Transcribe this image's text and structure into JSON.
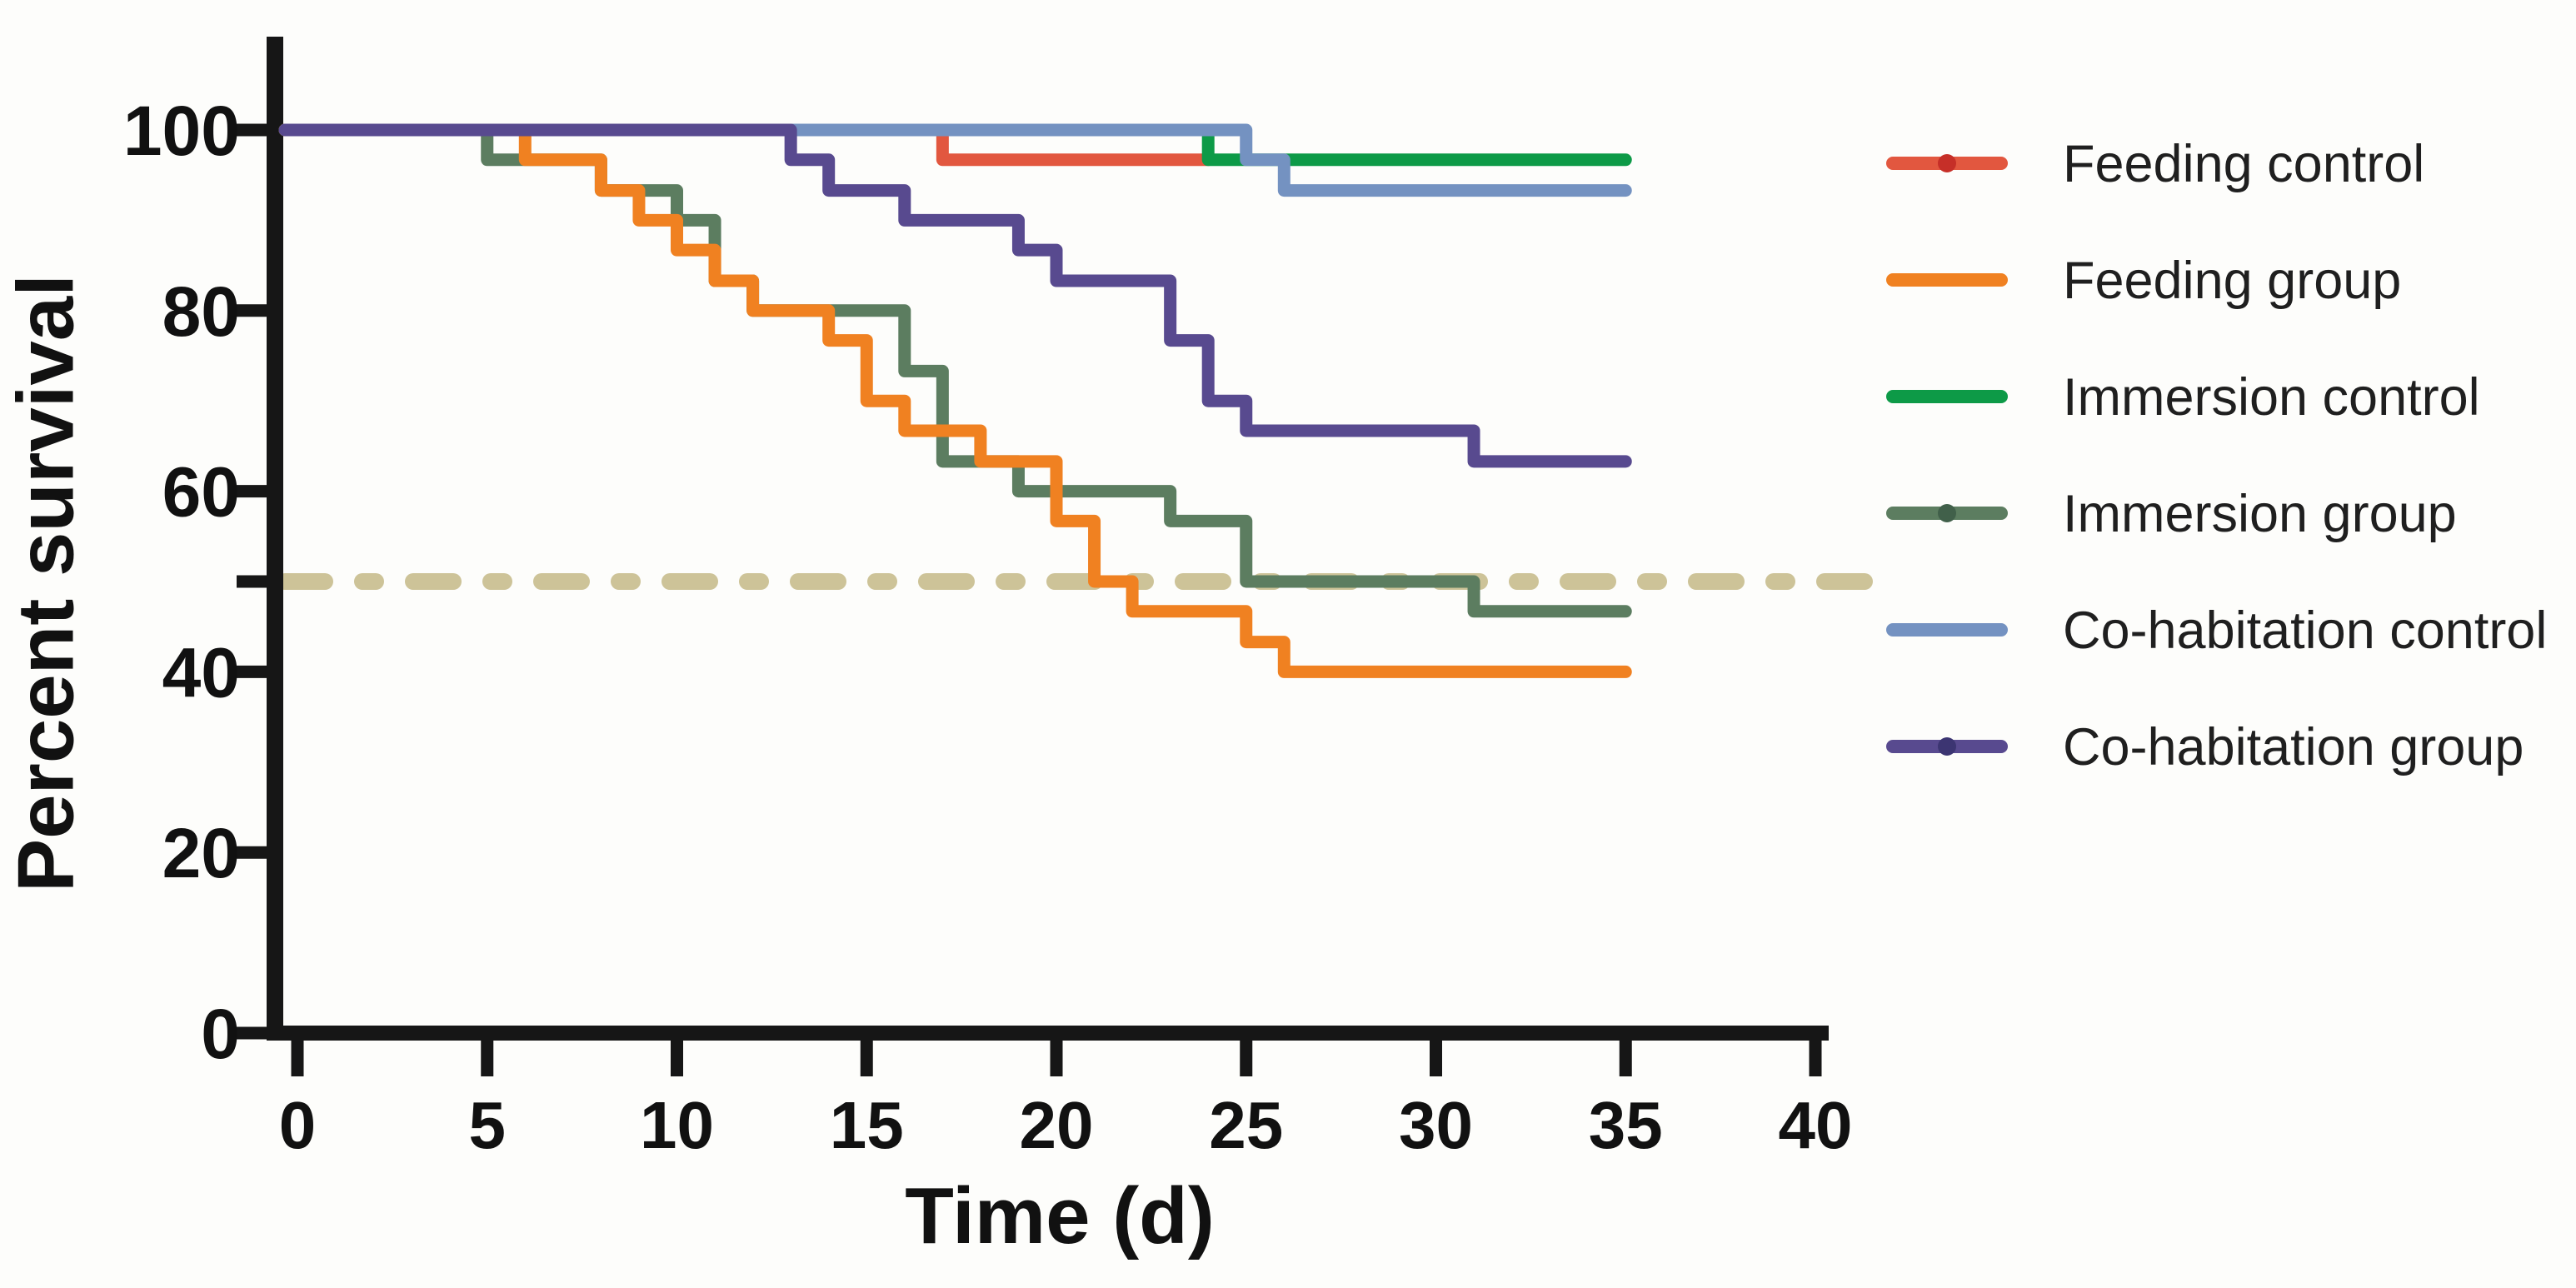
{
  "figure": {
    "background": "#fdfdfb",
    "axis_color": "#161616",
    "text_color": "#111111"
  },
  "chart_data": {
    "type": "line",
    "subtype": "kaplan-meier-step-survival",
    "title": "",
    "xlabel": "Time (d)",
    "ylabel": "Percent survival",
    "xlim": [
      0,
      40
    ],
    "ylim": [
      0,
      110
    ],
    "grid": false,
    "legend_position": "right",
    "x_ticks": [
      {
        "v": 0,
        "label": "0"
      },
      {
        "v": 5,
        "label": "5"
      },
      {
        "v": 10,
        "label": "10"
      },
      {
        "v": 15,
        "label": "15"
      },
      {
        "v": 20,
        "label": "20"
      },
      {
        "v": 25,
        "label": "25"
      },
      {
        "v": 30,
        "label": "30"
      },
      {
        "v": 35,
        "label": "35"
      },
      {
        "v": 40,
        "label": "40"
      }
    ],
    "y_ticks": [
      {
        "v": 0,
        "label": "0"
      },
      {
        "v": 20,
        "label": "20"
      },
      {
        "v": 40,
        "label": "40"
      },
      {
        "v": 50,
        "label": null
      },
      {
        "v": 60,
        "label": "60"
      },
      {
        "v": 80,
        "label": "80"
      },
      {
        "v": 100,
        "label": "100"
      }
    ],
    "reference_line": {
      "y": 50,
      "style": "dash-dot",
      "color": "#cdc398"
    },
    "series": [
      {
        "name": "Feeding control",
        "color": "#e2573f",
        "legend_dot": true,
        "dot_color": "#c62f28",
        "points": [
          [
            0,
            100
          ],
          [
            17,
            96.7
          ],
          [
            24,
            96.7
          ]
        ]
      },
      {
        "name": "Feeding group",
        "color": "#f08121",
        "legend_dot": false,
        "dot_color": null,
        "points": [
          [
            0,
            100
          ],
          [
            6,
            96.7
          ],
          [
            8,
            93.3
          ],
          [
            9,
            90
          ],
          [
            10,
            86.7
          ],
          [
            11,
            83.3
          ],
          [
            12,
            80
          ],
          [
            14,
            76.7
          ],
          [
            15,
            70
          ],
          [
            16,
            66.7
          ],
          [
            18,
            63.3
          ],
          [
            20,
            56.7
          ],
          [
            21,
            50
          ],
          [
            22,
            46.7
          ],
          [
            25,
            43.3
          ],
          [
            26,
            40
          ],
          [
            35,
            40
          ]
        ]
      },
      {
        "name": "Immersion control",
        "color": "#0d9a47",
        "legend_dot": false,
        "dot_color": null,
        "points": [
          [
            0,
            100
          ],
          [
            24,
            96.7
          ],
          [
            35,
            96.7
          ]
        ]
      },
      {
        "name": "Immersion group",
        "color": "#5c7d60",
        "legend_dot": true,
        "dot_color": "#41604a",
        "points": [
          [
            0,
            100
          ],
          [
            5,
            96.7
          ],
          [
            8,
            93.3
          ],
          [
            10,
            90
          ],
          [
            11,
            83.3
          ],
          [
            12,
            80
          ],
          [
            16,
            73.3
          ],
          [
            17,
            63.3
          ],
          [
            19,
            60
          ],
          [
            23,
            56.7
          ],
          [
            25,
            50
          ],
          [
            31,
            46.7
          ],
          [
            35,
            46.7
          ]
        ]
      },
      {
        "name": "Co-habitation control",
        "color": "#7492c1",
        "legend_dot": false,
        "dot_color": null,
        "points": [
          [
            0,
            100
          ],
          [
            25,
            96.7
          ],
          [
            26,
            93.3
          ],
          [
            35,
            93.3
          ]
        ]
      },
      {
        "name": "Co-habitation group",
        "color": "#584a8f",
        "legend_dot": true,
        "dot_color": "#3c3572",
        "points": [
          [
            0,
            100
          ],
          [
            13,
            96.7
          ],
          [
            14,
            93.3
          ],
          [
            16,
            90
          ],
          [
            19,
            86.7
          ],
          [
            20,
            83.3
          ],
          [
            23,
            76.7
          ],
          [
            24,
            70
          ],
          [
            25,
            66.7
          ],
          [
            31,
            63.3
          ],
          [
            35,
            63.3
          ]
        ]
      }
    ],
    "draw_order": [
      0,
      2,
      4,
      3,
      1,
      5
    ]
  }
}
